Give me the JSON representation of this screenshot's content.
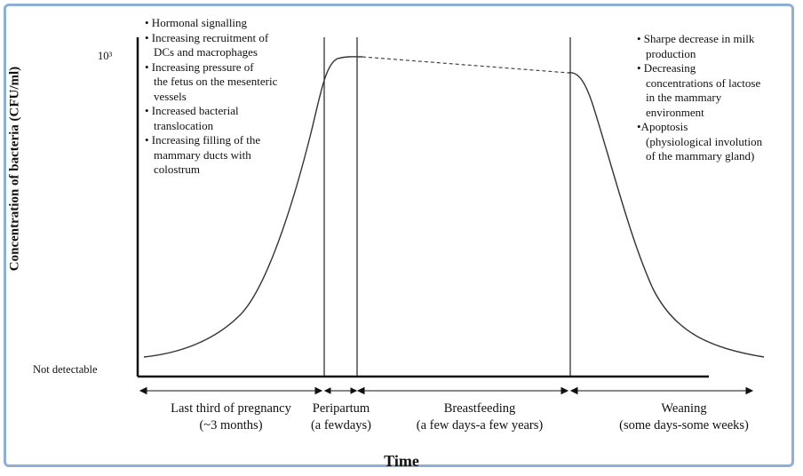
{
  "chart_data": {
    "type": "line",
    "title": "",
    "xlabel": "Time",
    "ylabel": "Concentration of bacteria (CFU/ml)",
    "y_ticks": [
      "10³",
      "Not detectable"
    ],
    "phases": [
      {
        "line1": "Last third of pregnancy",
        "line2": "(~3 months)"
      },
      {
        "line1": "Peripartum",
        "line2": "(a fewdays)"
      },
      {
        "line1": "Breastfeeding",
        "line2": "(a few days-a few years)"
      },
      {
        "line1": "Weaning",
        "line2": "(some days-some weeks)"
      }
    ],
    "annotations_left": [
      "• Hormonal signalling",
      "• Increasing recruitment of",
      "DCs and macrophages",
      "• Increasing pressure of",
      "the fetus on the mesenteric",
      "vessels",
      "• Increased bacterial",
      "translocation",
      "• Increasing filling of the",
      "mammary ducts with",
      "colostrum"
    ],
    "annotations_right": [
      "• Sharpe decrease in milk",
      "production",
      "• Decreasing",
      "concentrations of lactose",
      "in the mammary",
      "environment",
      "•Apoptosis",
      "(physiological involution",
      "of the mammary gland)"
    ],
    "line_color": "#333333"
  }
}
